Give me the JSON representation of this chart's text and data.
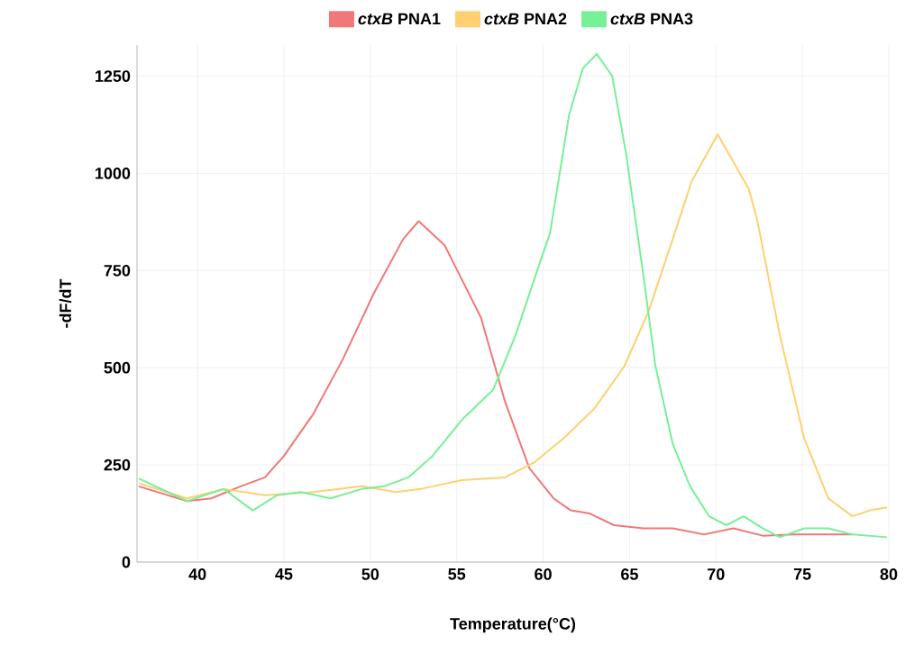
{
  "chart_data": {
    "type": "line",
    "xlabel": "Temperature(°C)",
    "ylabel": "-dF/dT",
    "xlim": [
      36.5,
      80
    ],
    "ylim": [
      0,
      1330
    ],
    "xticks": [
      40,
      45,
      50,
      55,
      60,
      65,
      70,
      75,
      80
    ],
    "yticks": [
      0,
      250,
      500,
      750,
      1000,
      1250
    ],
    "grid": true,
    "legend": "top",
    "line_style": "solid",
    "marker": "none",
    "series": [
      {
        "name": "*ctxB* PNA1",
        "color": "#f07878",
        "x": [
          36.6,
          39.4,
          40.8,
          42.5,
          43.9,
          45.0,
          46.7,
          48.4,
          50.2,
          51.9,
          52.8,
          54.3,
          56.4,
          57.8,
          59.2,
          60.6,
          61.6,
          62.7,
          64.1,
          65.8,
          67.5,
          69.3,
          71.0,
          72.7,
          74.5,
          77.9
        ],
        "values": [
          195,
          157,
          164,
          195,
          218,
          273,
          381,
          521,
          691,
          831,
          877,
          815,
          629,
          412,
          242,
          164,
          133,
          125,
          95,
          87,
          87,
          71,
          87,
          68,
          71,
          71
        ]
      },
      {
        "name": "*ctxB* PNA2",
        "color": "#ffd070",
        "x": [
          36.6,
          39.4,
          41.5,
          43.9,
          46.7,
          49.5,
          51.5,
          52.9,
          55.3,
          57.8,
          59.5,
          61.2,
          63.0,
          64.7,
          66.1,
          67.5,
          68.6,
          70.1,
          71.9,
          72.4,
          73.7,
          75.1,
          76.5,
          77.9,
          78.9,
          79.9
        ],
        "values": [
          203,
          164,
          188,
          172,
          180,
          195,
          180,
          188,
          211,
          218,
          257,
          319,
          397,
          504,
          645,
          831,
          980,
          1100,
          960,
          877,
          583,
          319,
          164,
          118,
          133,
          141
        ]
      },
      {
        "name": "*ctxB* PNA3",
        "color": "#78f098",
        "x": [
          36.6,
          39.4,
          41.5,
          43.2,
          44.6,
          46.0,
          47.7,
          49.5,
          50.8,
          52.2,
          53.6,
          55.3,
          57.1,
          58.4,
          59.8,
          60.4,
          61.5,
          62.3,
          63.1,
          64.0,
          64.8,
          65.8,
          66.5,
          67.5,
          68.5,
          69.6,
          70.6,
          71.6,
          72.7,
          73.7,
          75.1,
          76.5,
          77.9,
          79.9
        ],
        "values": [
          215,
          157,
          188,
          133,
          172,
          180,
          164,
          188,
          195,
          218,
          273,
          366,
          443,
          583,
          769,
          846,
          1150,
          1270,
          1307,
          1250,
          1050,
          738,
          504,
          304,
          195,
          118,
          95,
          118,
          87,
          64,
          87,
          87,
          71,
          64
        ]
      }
    ]
  }
}
